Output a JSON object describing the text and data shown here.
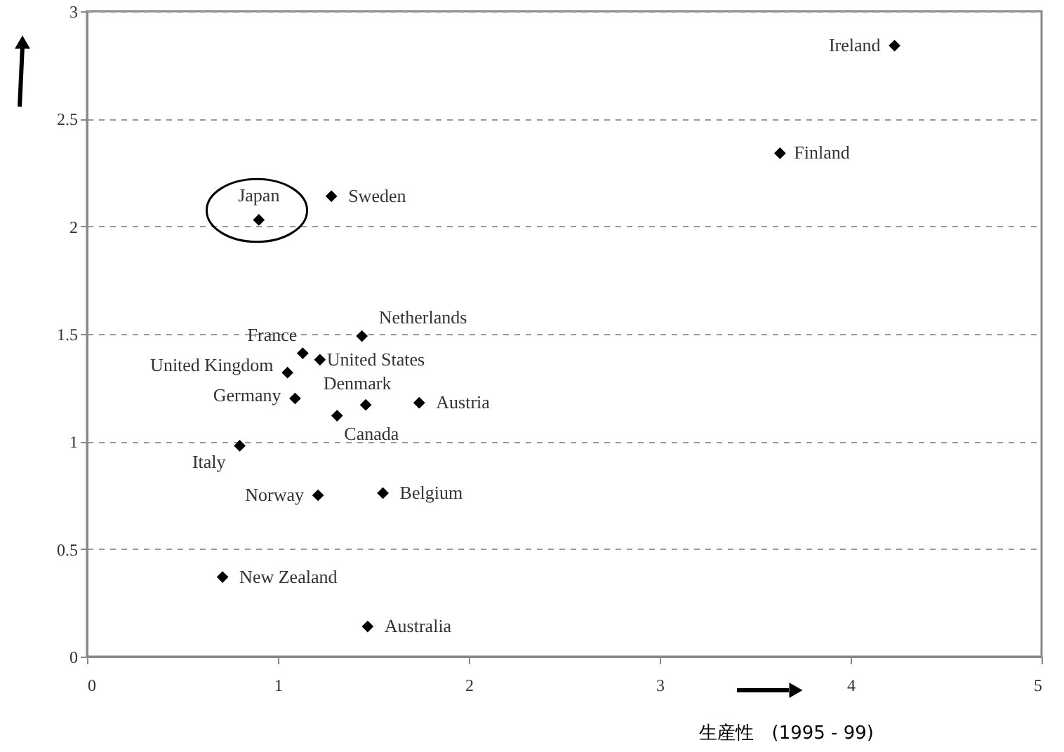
{
  "chart_data": {
    "type": "scatter",
    "xlabel": "生産性　(1995 - 99)",
    "series": [
      {
        "color": "#000000",
        "x": [
          4.23,
          3.63,
          1.28,
          0.9,
          1.44,
          1.13,
          1.22,
          1.05,
          1.09,
          1.46,
          1.31,
          1.74,
          0.8,
          1.21,
          1.55,
          0.71,
          1.47
        ],
        "values": [
          2.84,
          2.34,
          2.14,
          2.03,
          1.49,
          1.41,
          1.38,
          1.32,
          1.2,
          1.17,
          1.12,
          1.18,
          0.98,
          0.75,
          0.76,
          0.37,
          0.14
        ]
      }
    ],
    "annotations": [
      {
        "text": "Ireland",
        "x": 4.23,
        "y": 2.84
      },
      {
        "text": "Finland",
        "x": 3.63,
        "y": 2.34
      },
      {
        "text": "Sweden",
        "x": 1.28,
        "y": 2.14
      },
      {
        "text": "Japan",
        "x": 0.9,
        "y": 2.03
      },
      {
        "text": "Netherlands",
        "x": 1.44,
        "y": 1.49
      },
      {
        "text": "France",
        "x": 1.13,
        "y": 1.41
      },
      {
        "text": "United States",
        "x": 1.22,
        "y": 1.38
      },
      {
        "text": "United Kingdom",
        "x": 1.05,
        "y": 1.32
      },
      {
        "text": "Germany",
        "x": 1.09,
        "y": 1.2
      },
      {
        "text": "Denmark",
        "x": 1.46,
        "y": 1.17
      },
      {
        "text": "Canada",
        "x": 1.31,
        "y": 1.12
      },
      {
        "text": "Austria",
        "x": 1.74,
        "y": 1.18
      },
      {
        "text": "Italy",
        "x": 0.8,
        "y": 0.98
      },
      {
        "text": "Norway",
        "x": 1.21,
        "y": 0.75
      },
      {
        "text": "Belgium",
        "x": 1.55,
        "y": 0.76
      },
      {
        "text": "New Zealand",
        "x": 0.71,
        "y": 0.37
      },
      {
        "text": "Australia",
        "x": 1.47,
        "y": 0.14
      }
    ],
    "xlim": [
      0,
      5
    ],
    "ylim": [
      0,
      3
    ],
    "xticks": [
      0,
      1,
      2,
      3,
      4,
      5
    ],
    "yticks": [
      0,
      0.5,
      1,
      1.5,
      2,
      2.5,
      3
    ],
    "grid": "y",
    "marker": "diamond"
  }
}
